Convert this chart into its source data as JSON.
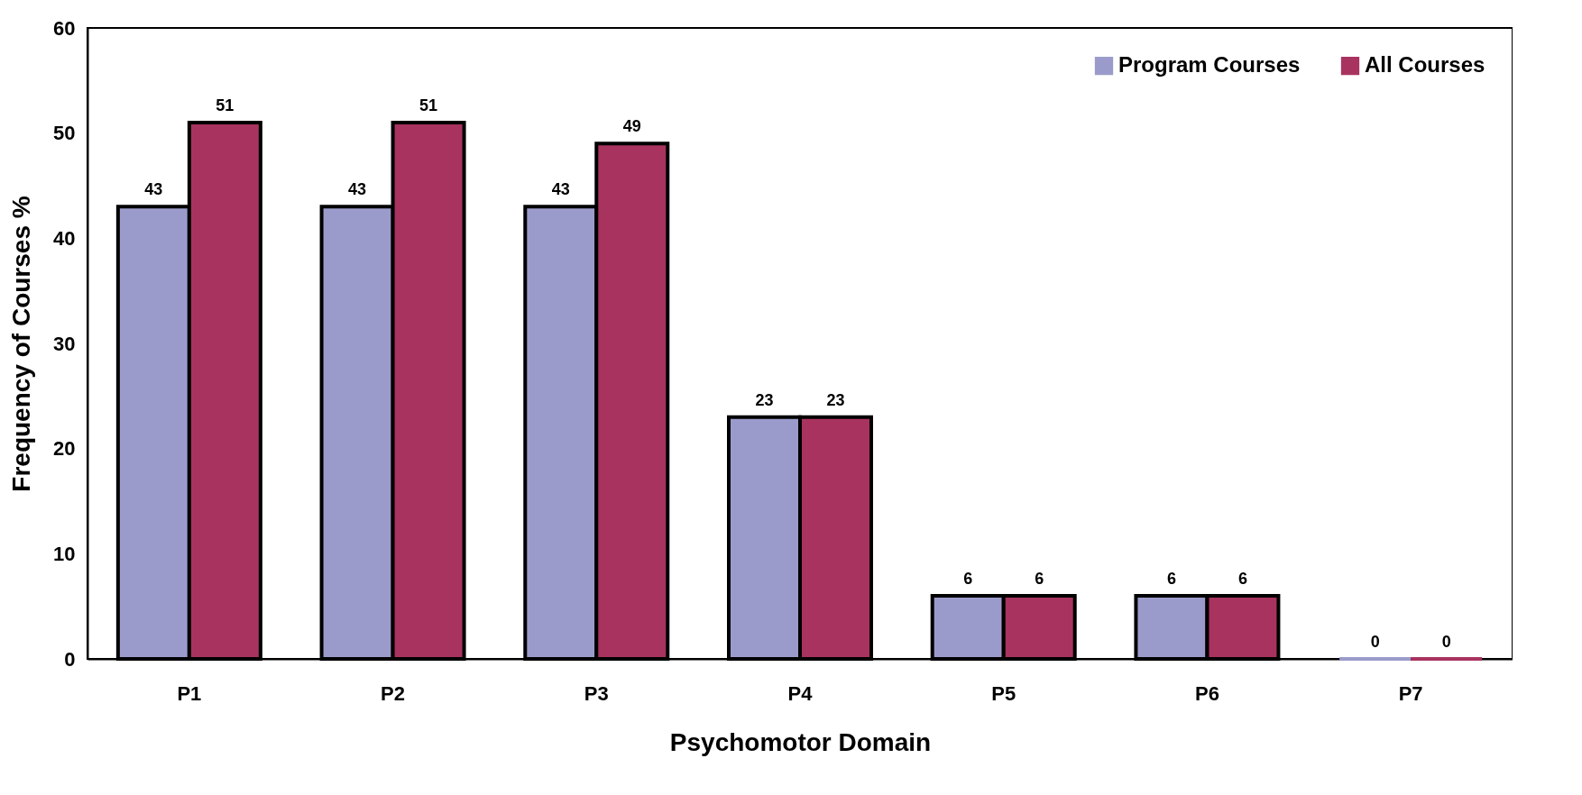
{
  "chart_data": {
    "type": "bar",
    "xlabel": "Psychomotor Domain",
    "ylabel": "Frequency of Courses %",
    "categories": [
      "P1",
      "P2",
      "P3",
      "P4",
      "P5",
      "P6",
      "P7"
    ],
    "series": [
      {
        "name": "Program Courses",
        "color": "#9b9bcb",
        "values": [
          43,
          43,
          43,
          23,
          6,
          6,
          0
        ]
      },
      {
        "name": "All Courses",
        "color": "#a8335f",
        "values": [
          51,
          51,
          49,
          23,
          6,
          6,
          0
        ]
      }
    ],
    "ylim": [
      0,
      60
    ],
    "yticks": [
      0,
      10,
      20,
      30,
      40,
      50,
      60
    ],
    "data_labels": true,
    "legend": "top right",
    "grid": false
  }
}
